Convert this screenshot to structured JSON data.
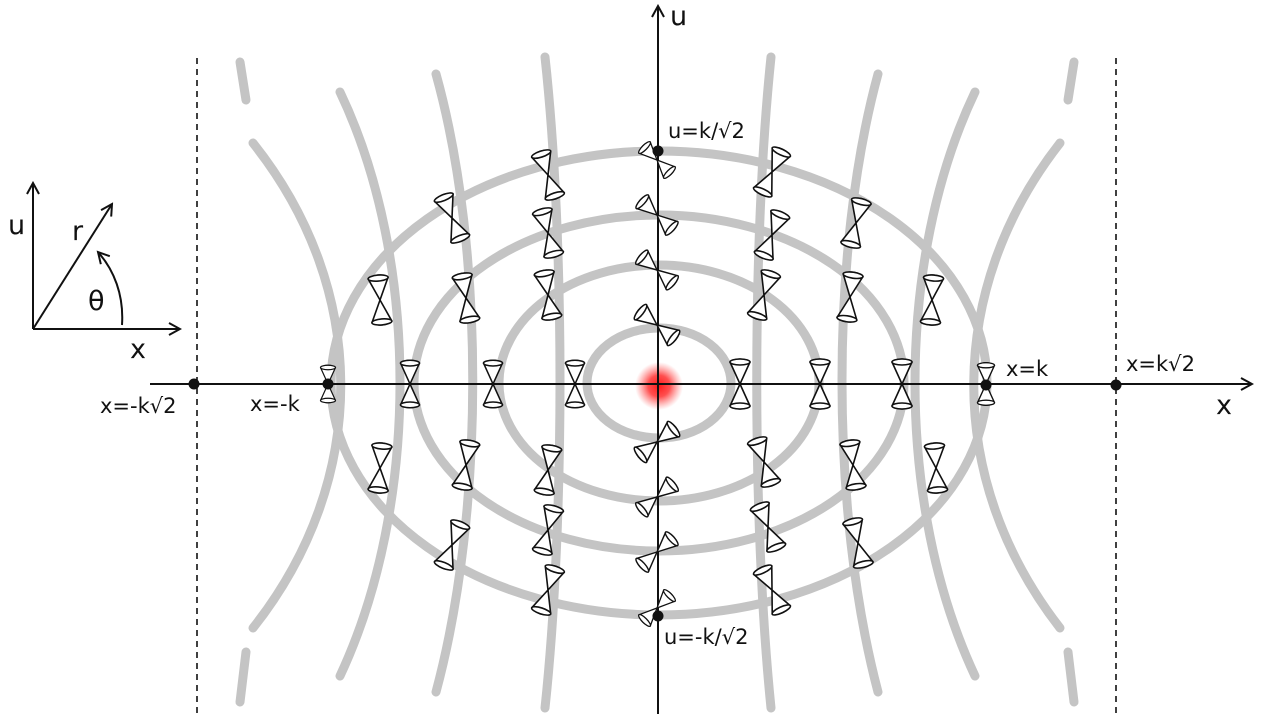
{
  "axes": {
    "horizontal_label": "x",
    "vertical_label": "u"
  },
  "inset": {
    "u_label": "u",
    "x_label": "x",
    "r_label": "r",
    "theta_label": "θ"
  },
  "labels": {
    "u_top": "u=k/√2",
    "u_bottom": "u=-k/√2",
    "x_neg_k": "x=-k",
    "x_neg_k_sqrt2": "x=-k√2",
    "x_pos_k": "x=k",
    "x_pos_k_sqrt2": "x=k√2"
  },
  "colors": {
    "curves": "#c4c4c4",
    "ink": "#111111",
    "center_glow": "#ff2020"
  }
}
